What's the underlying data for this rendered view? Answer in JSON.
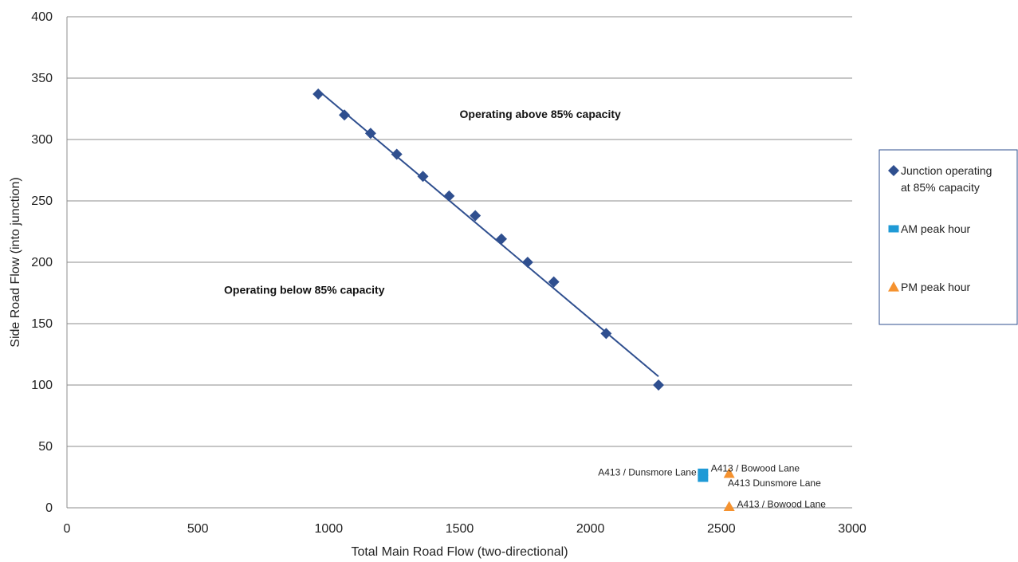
{
  "chart_data": {
    "type": "scatter",
    "title": "",
    "xlabel": "Total Main Road Flow (two-directional)",
    "ylabel": "Side Road Flow (into junction)",
    "xlim": [
      0,
      3000
    ],
    "ylim": [
      0,
      400
    ],
    "xticks": [
      "0",
      "500",
      "1000",
      "1500",
      "2000",
      "2500",
      "3000"
    ],
    "yticks": [
      "0",
      "50",
      "100",
      "150",
      "200",
      "250",
      "300",
      "350",
      "400"
    ],
    "grid": "horizontal",
    "legend_position": "right",
    "series": [
      {
        "name": "Junction operating at 85% capacity",
        "legend_lines": [
          "Junction operating",
          "at 85% capacity"
        ],
        "marker": "diamond",
        "color": "#2f4f8f",
        "points": [
          [
            960,
            337
          ],
          [
            1060,
            320
          ],
          [
            1160,
            305
          ],
          [
            1260,
            288
          ],
          [
            1360,
            270
          ],
          [
            1460,
            254
          ],
          [
            1560,
            238
          ],
          [
            1660,
            219
          ],
          [
            1760,
            200
          ],
          [
            1860,
            184
          ],
          [
            2060,
            142
          ],
          [
            2260,
            100
          ]
        ]
      },
      {
        "name": "AM peak hour",
        "legend_lines": [
          "AM peak hour"
        ],
        "marker": "square",
        "color": "#1f9ad6",
        "points": [
          [
            2430,
            29
          ],
          [
            2430,
            24
          ]
        ]
      },
      {
        "name": "PM peak hour",
        "legend_lines": [
          "PM peak hour"
        ],
        "marker": "triangle",
        "color": "#f5922f",
        "points": [
          [
            2530,
            28
          ],
          [
            2530,
            1
          ]
        ]
      }
    ],
    "trendline": {
      "color": "#2f4f8f",
      "from": [
        960,
        340
      ],
      "to": [
        2260,
        107
      ]
    },
    "annotations": [
      {
        "text": "Operating above 85% capacity",
        "x": 1500,
        "y": 320,
        "style": "region"
      },
      {
        "text": "Operating below 85% capacity",
        "x": 600,
        "y": 177,
        "style": "region"
      },
      {
        "text": "A413 / Dunsmore Lane",
        "x": 2405,
        "y": 29,
        "anchor": "end"
      },
      {
        "text": "A413 / Bowood Lane",
        "x": 2460,
        "y": 32,
        "anchor": "start"
      },
      {
        "text": "A413  Dunsmore Lane",
        "x": 2525,
        "y": 20,
        "anchor": "start"
      },
      {
        "text": "A413 / Bowood Lane",
        "x": 2560,
        "y": 3,
        "anchor": "start"
      }
    ]
  }
}
